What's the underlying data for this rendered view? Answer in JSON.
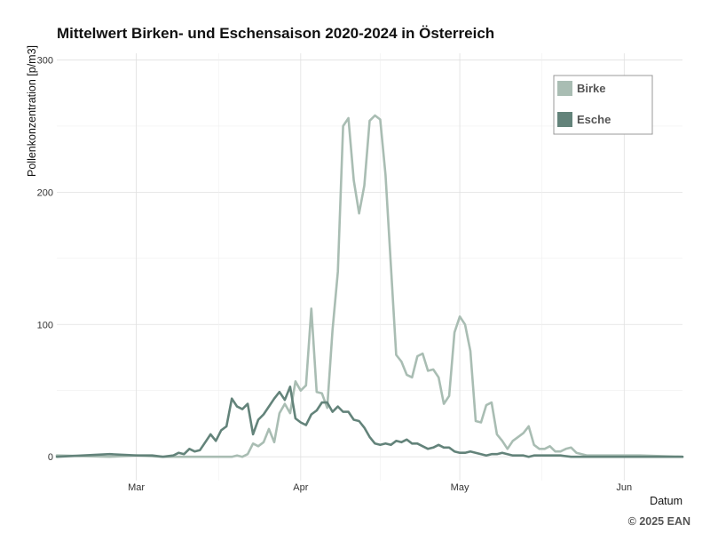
{
  "chart_data": {
    "type": "line",
    "title": "Mittelwert Birken- und Eschensaison 2020-2024 in Österreich",
    "xlabel": "Datum",
    "ylabel": "Pollenkonzentration [p/m3]",
    "ylim": [
      -18,
      305
    ],
    "y_ticks": [
      0,
      100,
      200,
      300
    ],
    "x_range_days": [
      -15,
      103
    ],
    "x_ticks": [
      {
        "label": "Mar",
        "day": 0
      },
      {
        "label": "Apr",
        "day": 31
      },
      {
        "label": "May",
        "day": 61
      },
      {
        "label": "Jun",
        "day": 92
      }
    ],
    "grid": true,
    "legend_position": "top-right",
    "credit": "© 2025 EAN",
    "series": [
      {
        "name": "Birke",
        "color": "#a9bdb3",
        "points": [
          [
            -15,
            1
          ],
          [
            -5,
            0
          ],
          [
            0,
            1
          ],
          [
            5,
            0
          ],
          [
            10,
            0
          ],
          [
            15,
            0
          ],
          [
            18,
            0
          ],
          [
            19,
            1
          ],
          [
            20,
            0
          ],
          [
            21,
            2
          ],
          [
            22,
            10
          ],
          [
            23,
            8
          ],
          [
            24,
            11
          ],
          [
            25,
            21
          ],
          [
            26,
            11
          ],
          [
            27,
            33
          ],
          [
            28,
            40
          ],
          [
            29,
            33
          ],
          [
            30,
            57
          ],
          [
            31,
            50
          ],
          [
            32,
            54
          ],
          [
            33,
            112
          ],
          [
            34,
            49
          ],
          [
            35,
            48
          ],
          [
            36,
            37
          ],
          [
            37,
            96
          ],
          [
            38,
            140
          ],
          [
            39,
            250
          ],
          [
            40,
            256
          ],
          [
            41,
            209
          ],
          [
            42,
            184
          ],
          [
            43,
            205
          ],
          [
            44,
            254
          ],
          [
            45,
            258
          ],
          [
            46,
            255
          ],
          [
            47,
            213
          ],
          [
            48,
            145
          ],
          [
            49,
            77
          ],
          [
            50,
            72
          ],
          [
            51,
            62
          ],
          [
            52,
            60
          ],
          [
            53,
            76
          ],
          [
            54,
            78
          ],
          [
            55,
            65
          ],
          [
            56,
            66
          ],
          [
            57,
            60
          ],
          [
            58,
            40
          ],
          [
            59,
            46
          ],
          [
            60,
            94
          ],
          [
            61,
            106
          ],
          [
            62,
            100
          ],
          [
            63,
            80
          ],
          [
            64,
            27
          ],
          [
            65,
            26
          ],
          [
            66,
            39
          ],
          [
            67,
            41
          ],
          [
            68,
            17
          ],
          [
            69,
            12
          ],
          [
            70,
            6
          ],
          [
            71,
            12
          ],
          [
            72,
            15
          ],
          [
            73,
            18
          ],
          [
            74,
            23
          ],
          [
            75,
            9
          ],
          [
            76,
            6
          ],
          [
            77,
            6
          ],
          [
            78,
            8
          ],
          [
            79,
            4
          ],
          [
            80,
            4
          ],
          [
            81,
            6
          ],
          [
            82,
            7
          ],
          [
            83,
            3
          ],
          [
            85,
            1
          ],
          [
            90,
            1
          ],
          [
            95,
            1
          ],
          [
            103,
            0
          ]
        ]
      },
      {
        "name": "Esche",
        "color": "#63837a",
        "points": [
          [
            -15,
            0
          ],
          [
            -10,
            1
          ],
          [
            -5,
            2
          ],
          [
            0,
            1
          ],
          [
            3,
            1
          ],
          [
            5,
            0
          ],
          [
            7,
            1
          ],
          [
            8,
            3
          ],
          [
            9,
            2
          ],
          [
            10,
            6
          ],
          [
            11,
            4
          ],
          [
            12,
            5
          ],
          [
            13,
            11
          ],
          [
            14,
            17
          ],
          [
            15,
            12
          ],
          [
            16,
            20
          ],
          [
            17,
            23
          ],
          [
            18,
            44
          ],
          [
            19,
            38
          ],
          [
            20,
            36
          ],
          [
            21,
            40
          ],
          [
            22,
            17
          ],
          [
            23,
            28
          ],
          [
            24,
            32
          ],
          [
            25,
            38
          ],
          [
            26,
            44
          ],
          [
            27,
            49
          ],
          [
            28,
            43
          ],
          [
            29,
            53
          ],
          [
            30,
            29
          ],
          [
            31,
            26
          ],
          [
            32,
            24
          ],
          [
            33,
            32
          ],
          [
            34,
            35
          ],
          [
            35,
            41
          ],
          [
            36,
            41
          ],
          [
            37,
            34
          ],
          [
            38,
            38
          ],
          [
            39,
            34
          ],
          [
            40,
            34
          ],
          [
            41,
            28
          ],
          [
            42,
            27
          ],
          [
            43,
            22
          ],
          [
            44,
            15
          ],
          [
            45,
            10
          ],
          [
            46,
            9
          ],
          [
            47,
            10
          ],
          [
            48,
            9
          ],
          [
            49,
            12
          ],
          [
            50,
            11
          ],
          [
            51,
            13
          ],
          [
            52,
            10
          ],
          [
            53,
            10
          ],
          [
            54,
            8
          ],
          [
            55,
            6
          ],
          [
            56,
            7
          ],
          [
            57,
            9
          ],
          [
            58,
            7
          ],
          [
            59,
            7
          ],
          [
            60,
            4
          ],
          [
            61,
            3
          ],
          [
            62,
            3
          ],
          [
            63,
            4
          ],
          [
            64,
            3
          ],
          [
            65,
            2
          ],
          [
            66,
            1
          ],
          [
            67,
            2
          ],
          [
            68,
            2
          ],
          [
            69,
            3
          ],
          [
            70,
            2
          ],
          [
            71,
            1
          ],
          [
            72,
            1
          ],
          [
            73,
            1
          ],
          [
            74,
            0
          ],
          [
            75,
            1
          ],
          [
            78,
            1
          ],
          [
            80,
            1
          ],
          [
            82,
            0
          ],
          [
            90,
            0
          ],
          [
            103,
            0
          ]
        ]
      }
    ]
  }
}
